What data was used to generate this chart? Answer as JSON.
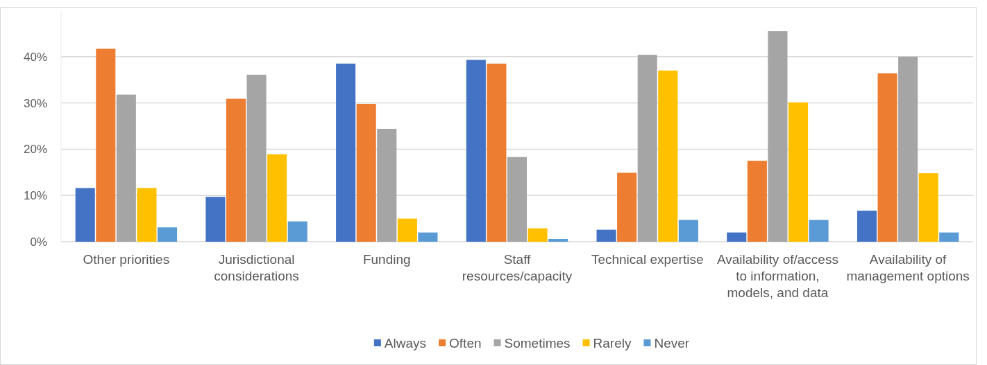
{
  "chart_data": {
    "type": "bar",
    "categories": [
      "Other priorities",
      "Jurisdictional considerations",
      "Funding",
      "Staff resources/capacity",
      "Technical expertise",
      "Availability of/access to information, models, and data",
      "Availability of management options"
    ],
    "series": [
      {
        "name": "Always",
        "color": "#4472c4",
        "values": [
          11.6,
          9.7,
          38.5,
          39.3,
          2.6,
          2.0,
          6.7
        ]
      },
      {
        "name": "Often",
        "color": "#ed7d31",
        "values": [
          41.7,
          30.9,
          29.8,
          38.5,
          14.9,
          17.5,
          36.4
        ]
      },
      {
        "name": "Sometimes",
        "color": "#a5a5a5",
        "values": [
          31.8,
          36.1,
          24.4,
          18.3,
          40.4,
          45.5,
          40.0
        ]
      },
      {
        "name": "Rarely",
        "color": "#ffc000",
        "values": [
          11.6,
          18.9,
          5.0,
          2.9,
          37.0,
          30.1,
          14.8
        ]
      },
      {
        "name": "Never",
        "color": "#5b9bd5",
        "values": [
          3.1,
          4.4,
          2.0,
          0.6,
          4.7,
          4.7,
          2.0
        ]
      }
    ],
    "ylim": [
      0,
      50
    ],
    "yticks": [
      {
        "value": 0,
        "label": "0%"
      },
      {
        "value": 10,
        "label": "10%"
      },
      {
        "value": 20,
        "label": "20%"
      },
      {
        "value": 30,
        "label": "30%"
      },
      {
        "value": 40,
        "label": "40%"
      }
    ],
    "grid": "y",
    "legend": "bottom"
  }
}
